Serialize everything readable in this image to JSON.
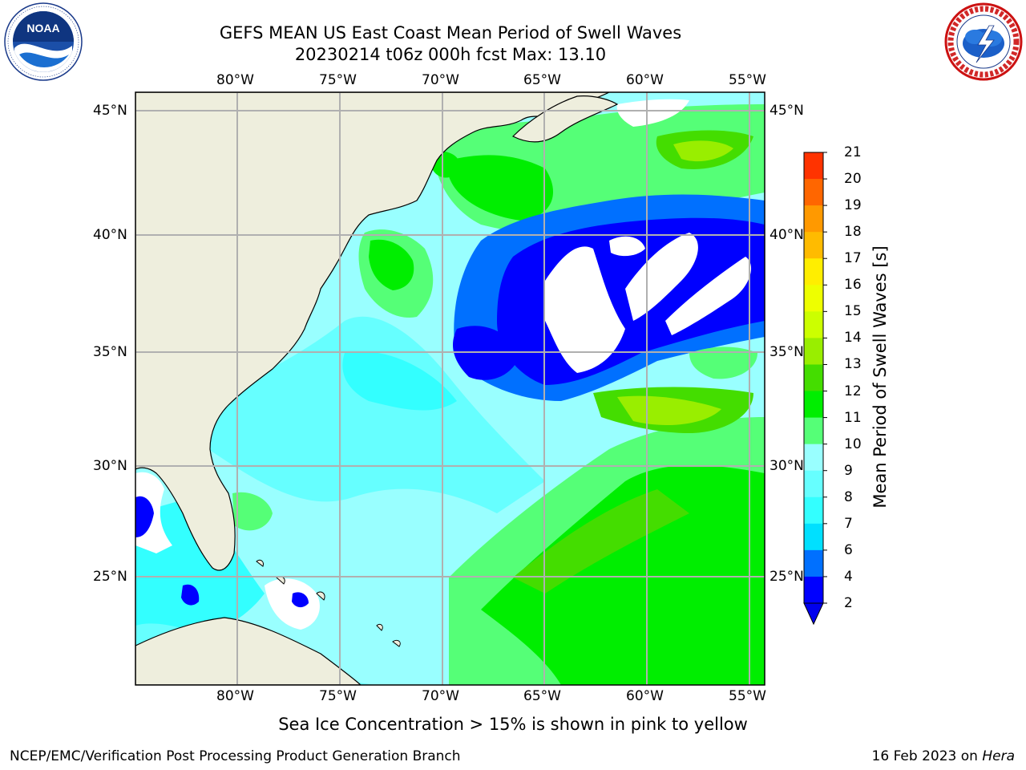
{
  "header": {
    "title_line1": "GEFS MEAN US East Coast Mean Period of Swell Waves",
    "title_line2": "20230214 t06z 000h fcst   Max: 13.10"
  },
  "logos": {
    "left": {
      "name": "NOAA",
      "text": "NOAA",
      "ring_text": "NATIONAL OCEANIC AND ATMOSPHERIC ADMINISTRATION · U.S. DEPARTMENT OF COMMERCE"
    },
    "right": {
      "name": "National Weather Service",
      "ring_text": "NATIONAL WEATHER SERVICE"
    }
  },
  "map": {
    "lon_labels": [
      "80°W",
      "75°W",
      "70°W",
      "65°W",
      "60°W",
      "55°W"
    ],
    "lat_labels": [
      "45°N",
      "40°N",
      "35°N",
      "30°N",
      "25°N"
    ],
    "colors": {
      "land": "#eeeedd",
      "grid": "#b0b0b0",
      "missing": "#ffffff",
      "ice_note": "pink to yellow"
    }
  },
  "colorbar": {
    "label": "Mean Period of Swell Waves [s]",
    "ticks": [
      "2",
      "4",
      "6",
      "7",
      "8",
      "9",
      "10",
      "11",
      "12",
      "13",
      "14",
      "15",
      "16",
      "17",
      "18",
      "19",
      "20",
      "21"
    ],
    "tick_labels": [
      "21",
      "20",
      "19",
      "18",
      "17",
      "16",
      "15",
      "14",
      "13",
      "12",
      "11",
      "10",
      "9",
      "8",
      "7",
      "6",
      "4",
      "2"
    ],
    "colors": [
      "#0000ff",
      "#0070ff",
      "#00e0ff",
      "#33ffff",
      "#66ffff",
      "#99ffff",
      "#55ff77",
      "#00ee00",
      "#44dd00",
      "#99ee00",
      "#ccff00",
      "#eeff00",
      "#ffee00",
      "#ffbb00",
      "#ff9900",
      "#ff6600",
      "#ff3300",
      "#ff0000"
    ],
    "extend_color": "#0000ee"
  },
  "sub_note": "Sea Ice Concentration > 15% is shown in pink to yellow",
  "footer": {
    "left": "NCEP/EMC/Verification Post Processing Product Generation Branch",
    "right_prefix": "16 Feb 2023 on ",
    "right_host": "Hera"
  }
}
